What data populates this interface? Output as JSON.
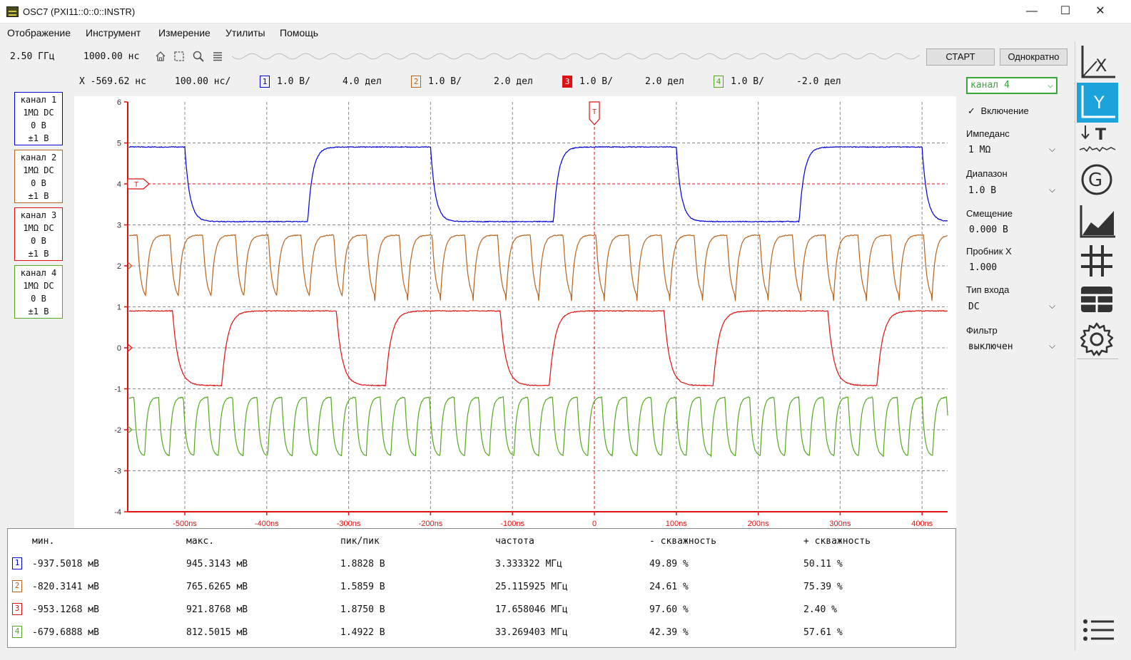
{
  "title": "OSC7 (PXI11::0::0::INSTR)",
  "window_controls": {
    "minimize": "—",
    "maximize": "☐",
    "close": "✕"
  },
  "menu": [
    "Отображение",
    "Инструмент",
    "Измерение",
    "Утилиты",
    "Помощь"
  ],
  "toolbar": {
    "sample_rate": "2.50 ГГц",
    "record_length": "1000.00 нс",
    "icons": [
      "home-icon",
      "fit-icon",
      "zoom-icon",
      "list-icon"
    ],
    "start_label": "СТАРТ",
    "single_label": "Однократно"
  },
  "status": {
    "x_pos": "X -569.62 нс",
    "timebase": "100.00 нс/",
    "channels": [
      {
        "num": "1",
        "scale": "1.0 В/",
        "offset": "4.0 дел"
      },
      {
        "num": "2",
        "scale": "1.0 В/",
        "offset": "2.0 дел"
      },
      {
        "num": "3",
        "scale": "1.0 В/",
        "offset": "2.0 дел"
      },
      {
        "num": "4",
        "scale": "1.0 В/",
        "offset": "-2.0 дел"
      }
    ]
  },
  "channel_cards": [
    {
      "name": "канал 1",
      "coupling": "1MΩ DC",
      "offset": "0 В",
      "range": "±1 В"
    },
    {
      "name": "канал 2",
      "coupling": "1MΩ DC",
      "offset": "0 В",
      "range": "±1 В"
    },
    {
      "name": "канал 3",
      "coupling": "1MΩ DC",
      "offset": "0 В",
      "range": "±1 В"
    },
    {
      "name": "канал 4",
      "coupling": "1MΩ DC",
      "offset": "0 В",
      "range": "±1 В"
    }
  ],
  "colors": {
    "ch1": "#0000dd",
    "ch2": "#b8641e",
    "ch3": "#e01010",
    "ch4": "#55a822",
    "select": "#3aa63a",
    "side_active": "#1ca3dc"
  },
  "scope": {
    "y_ticks": [
      "6",
      "5",
      "4",
      "3",
      "2",
      "1",
      "0",
      "-1",
      "-2",
      "-3",
      "-4"
    ],
    "x_ticks": [
      "-500ns",
      "-400ns",
      "-300ns",
      "-200ns",
      "-100ns",
      "0",
      "100ns",
      "200ns",
      "300ns",
      "400ns"
    ],
    "trigger_marker": "T"
  },
  "measurements": {
    "headers": [
      "мин.",
      "макс.",
      "пик/пик",
      "частота",
      "- скважность",
      "+ скважность"
    ],
    "rows": [
      {
        "ch": "1",
        "min": "-937.5018 мВ",
        "max": "945.3143 мВ",
        "pp": "1.8828 В",
        "freq": "3.333322 МГц",
        "neg_duty": "49.89 %",
        "pos_duty": "50.11 %"
      },
      {
        "ch": "2",
        "min": "-820.3141 мВ",
        "max": "765.6265 мВ",
        "pp": "1.5859 В",
        "freq": "25.115925 МГц",
        "neg_duty": "24.61 %",
        "pos_duty": "75.39 %"
      },
      {
        "ch": "3",
        "min": "-953.1268 мВ",
        "max": "921.8768 мВ",
        "pp": "1.8750 В",
        "freq": "17.658046 МГц",
        "neg_duty": "97.60 %",
        "pos_duty": "2.40 %"
      },
      {
        "ch": "4",
        "min": "-679.6888 мВ",
        "max": "812.5015 мВ",
        "pp": "1.4922 В",
        "freq": "33.269403 МГц",
        "neg_duty": "42.39 %",
        "pos_duty": "57.61 %"
      }
    ]
  },
  "right_panel": {
    "channel_select": "канал 4",
    "enable_label": "Включение",
    "impedance_label": "Импеданс",
    "impedance_value": "1 MΩ",
    "range_label": "Диапазон",
    "range_value": "1.0 В",
    "offset_label": "Смещение",
    "offset_value": "0.000 В",
    "probe_label": "Пробник X",
    "probe_value": "1.000",
    "input_type_label": "Тип входа",
    "input_type_value": "DC",
    "filter_label": "Фильтр",
    "filter_value": "выключен"
  },
  "sidebar": {
    "x_label": "X",
    "y_label": "Y",
    "t_label": "T",
    "g_label": "G",
    "icons": [
      "x-axis-icon",
      "y-axis-icon",
      "trigger-icon",
      "generator-icon",
      "chart-icon",
      "grid-icon",
      "table-icon",
      "gear-icon",
      "menu-icon"
    ]
  }
}
